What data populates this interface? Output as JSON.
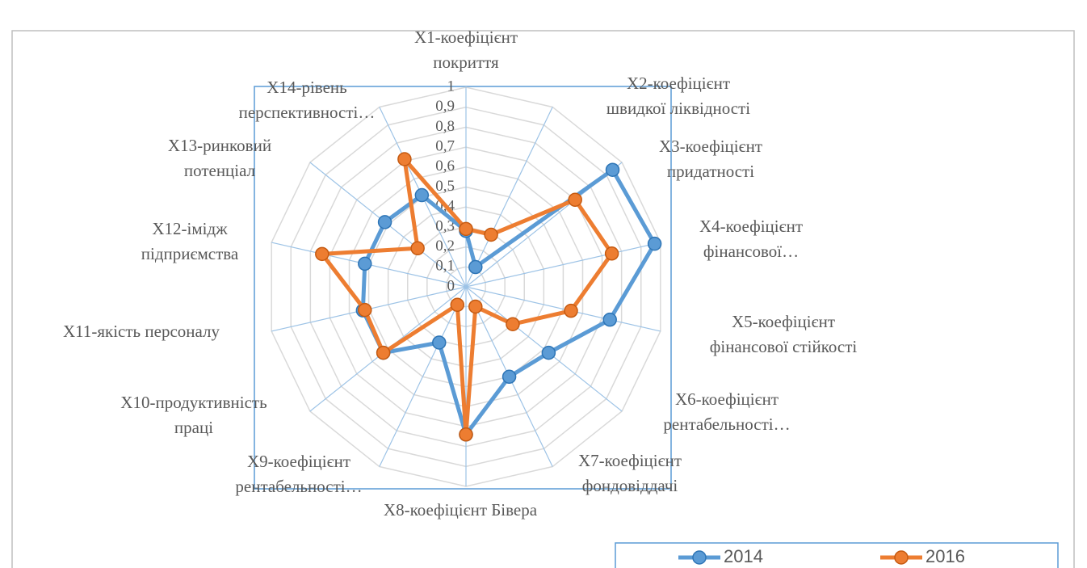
{
  "chart_data": {
    "type": "radar",
    "categories": [
      "X1-коефіцієнт покриття",
      "X2-коефіцієнт швидкої ліквідності",
      "X3-коефіцієнт придатності",
      "X4-коефіцієнт фінансової…",
      "X5-коефіцієнт фінансової стійкості",
      "X6-коефіцієнт рентабельності…",
      "X7-коефіцієнт фондовіддачі",
      "X8-коефіцієнт Бівера",
      "X9-коефіцієнт рентабельності…",
      "X10-продуктивність праці",
      "X11-якість персоналу",
      "X12-імідж підприємства",
      "X13-ринковий потенціал",
      "X14-рівень перспективності…"
    ],
    "series": [
      {
        "name": "2014",
        "color": "#5b9bd5",
        "values": [
          0.28,
          0.11,
          0.94,
          0.97,
          0.74,
          0.53,
          0.5,
          0.74,
          0.31,
          0.53,
          0.53,
          0.52,
          0.52,
          0.51
        ]
      },
      {
        "name": "2016",
        "color": "#ed7d31",
        "values": [
          0.29,
          0.29,
          0.7,
          0.75,
          0.54,
          0.3,
          0.11,
          0.74,
          0.1,
          0.53,
          0.52,
          0.74,
          0.31,
          0.71
        ]
      }
    ],
    "ylim": [
      0,
      1
    ],
    "yticks": [
      0,
      {
        "value": 0.1,
        "label": "0,1"
      },
      {
        "value": 0.2,
        "label": "0,2"
      },
      {
        "value": 0.3,
        "label": "0,3"
      },
      {
        "value": 0.4,
        "label": "0,4"
      },
      {
        "value": 0.5,
        "label": "0,5"
      },
      {
        "value": 0.6,
        "label": "0,6"
      },
      {
        "value": 0.7,
        "label": "0,7"
      },
      {
        "value": 0.8,
        "label": "0,8"
      },
      {
        "value": 0.9,
        "label": "0,9"
      },
      1
    ],
    "grid": true,
    "legend": "bottom"
  }
}
